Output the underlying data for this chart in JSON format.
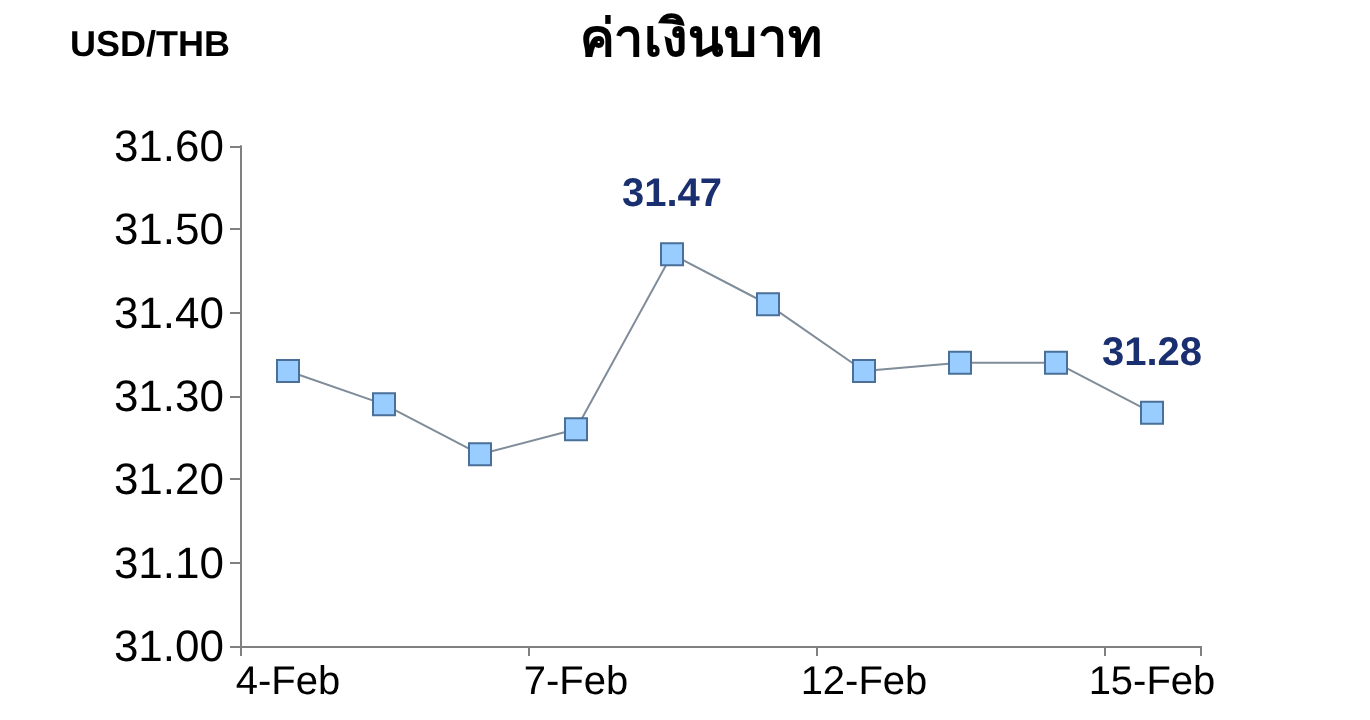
{
  "chart_data": {
    "type": "line",
    "title": "ค่าเงินบาท",
    "ylabel": "USD/THB",
    "categories": [
      "4-Feb",
      null,
      null,
      "7-Feb",
      null,
      null,
      "12-Feb",
      null,
      null,
      "15-Feb"
    ],
    "series": [
      {
        "color": "#99ccff",
        "values": [
          31.33,
          31.29,
          31.23,
          31.26,
          31.47,
          31.41,
          31.33,
          31.34,
          31.34,
          31.28
        ],
        "value_labels": [
          null,
          null,
          null,
          null,
          "31.47",
          null,
          null,
          null,
          null,
          "31.28"
        ]
      }
    ],
    "ylim": [
      31,
      31.6
    ],
    "yticks": [
      {
        "value": 31,
        "label": "31.00"
      },
      {
        "value": 31.1,
        "label": "31.10"
      },
      {
        "value": 31.2,
        "label": "31.20"
      },
      {
        "value": 31.3,
        "label": "31.30"
      },
      {
        "value": 31.4,
        "label": "31.40"
      },
      {
        "value": 31.5,
        "label": "31.50"
      },
      {
        "value": 31.6,
        "label": "31.60"
      }
    ],
    "grid": false,
    "marker": "square",
    "line_style": "solid"
  }
}
